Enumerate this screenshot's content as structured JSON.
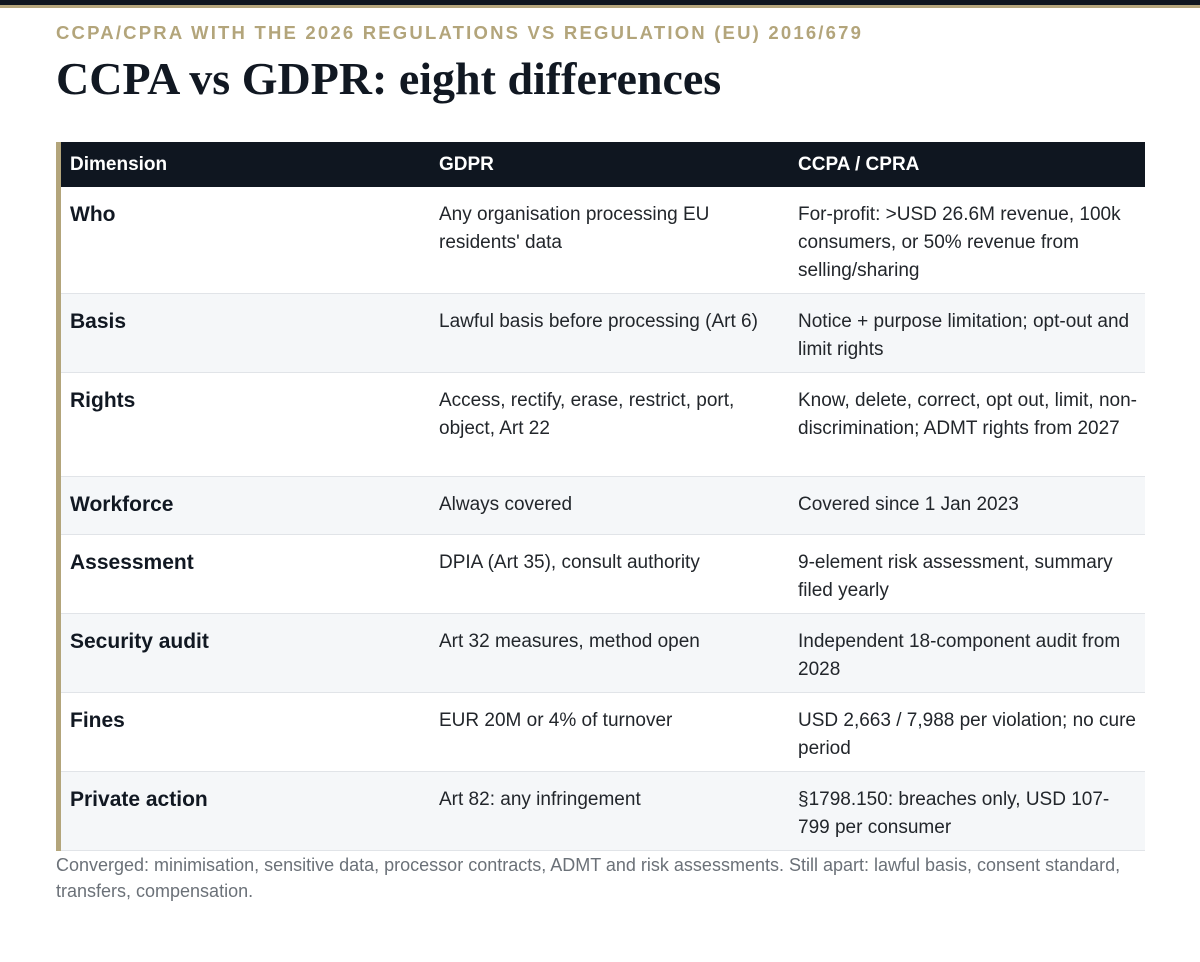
{
  "header": {
    "eyebrow": "CCPA/CPRA WITH THE 2026 REGULATIONS VS REGULATION (EU) 2016/679",
    "title": "CCPA vs GDPR: eight differences"
  },
  "table": {
    "columns": [
      "Dimension",
      "GDPR",
      "CCPA / CPRA"
    ],
    "rows": [
      {
        "dimension": "Who",
        "gdpr": "Any organisation processing EU residents' data",
        "ccpa": "For-profit: >USD 26.6M revenue, 100k consumers, or 50% revenue from selling/sharing"
      },
      {
        "dimension": "Basis",
        "gdpr": "Lawful basis before processing (Art 6)",
        "ccpa": "Notice + purpose limitation; opt-out and limit rights"
      },
      {
        "dimension": "Rights",
        "gdpr": "Access, rectify, erase, restrict, port, object, Art 22",
        "ccpa": "Know, delete, correct, opt out, limit, non-discrimination; ADMT rights from 2027"
      },
      {
        "dimension": "Workforce",
        "gdpr": "Always covered",
        "ccpa": "Covered since 1 Jan 2023"
      },
      {
        "dimension": "Assessment",
        "gdpr": "DPIA (Art 35), consult authority",
        "ccpa": "9-element risk assessment, summary filed yearly"
      },
      {
        "dimension": "Security audit",
        "gdpr": "Art 32 measures, method open",
        "ccpa": "Independent 18-component audit from 2028"
      },
      {
        "dimension": "Fines",
        "gdpr": "EUR 20M or 4% of turnover",
        "ccpa": "USD 2,663 / 7,988 per violation; no cure period"
      },
      {
        "dimension": "Private action",
        "gdpr": "Art 82: any infringement",
        "ccpa": "§1798.150: breaches only, USD 107-799 per consumer"
      }
    ]
  },
  "footnote": "Converged: minimisation, sensitive data, processor contracts, ADMT and risk assessments. Still apart: lawful basis, consent standard, transfers, compensation.",
  "colors": {
    "accent_gold": "#b3a57b",
    "header_dark": "#0f1620",
    "row_alt": "#f5f7f9"
  }
}
